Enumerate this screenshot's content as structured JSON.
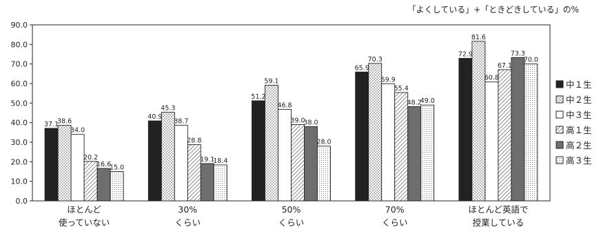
{
  "chart_data": {
    "type": "bar",
    "title": "「よくしている」+「ときどきしている」の%",
    "xlabel": "",
    "ylabel": "",
    "ylim": [
      0,
      90
    ],
    "yticks": [
      "0.0",
      "10.0",
      "20.0",
      "30.0",
      "40.0",
      "50.0",
      "60.0",
      "70.0",
      "80.0",
      "90.0"
    ],
    "grid": false,
    "legend_position": "right",
    "categories": [
      [
        "ほとんど",
        "使っていない"
      ],
      [
        "30%",
        "くらい"
      ],
      [
        "50%",
        "くらい"
      ],
      [
        "70%",
        "くらい"
      ],
      [
        "ほとんど英語で",
        "授業している"
      ]
    ],
    "series": [
      {
        "name": "中1生",
        "legend_label": "中１生",
        "fill": "solid-dark",
        "color": "#222222",
        "values": [
          37.1,
          40.9,
          51.2,
          65.9,
          72.9
        ],
        "labels": [
          "37.1",
          "40.9",
          "51.2",
          "65.9",
          "72.9"
        ]
      },
      {
        "name": "中2生",
        "legend_label": "中２生",
        "fill": "dots",
        "color": "#ffffff",
        "values": [
          38.6,
          45.3,
          59.1,
          70.3,
          81.6
        ],
        "labels": [
          "38.6",
          "45.3",
          "59.1",
          "70.3",
          "81.6"
        ]
      },
      {
        "name": "中3生",
        "legend_label": "中３生",
        "fill": "white",
        "color": "#ffffff",
        "values": [
          34.0,
          38.7,
          46.8,
          59.9,
          60.8
        ],
        "labels": [
          "34.0",
          "38.7",
          "46.8",
          "59.9",
          "60.8"
        ]
      },
      {
        "name": "高1生",
        "legend_label": "高１生",
        "fill": "diagonal",
        "color": "#ffffff",
        "values": [
          20.2,
          28.8,
          39.0,
          55.4,
          67.1
        ],
        "labels": [
          "20.2",
          "28.8",
          "39.0",
          "55.4",
          "67.1"
        ]
      },
      {
        "name": "高2生",
        "legend_label": "高２生",
        "fill": "solid-gray",
        "color": "#6e6e6e",
        "values": [
          16.6,
          19.1,
          38.0,
          48.2,
          73.3
        ],
        "labels": [
          "16.6",
          "19.1",
          "38.0",
          "48.2",
          "73.3"
        ]
      },
      {
        "name": "高3生",
        "legend_label": "高３生",
        "fill": "fine-dots",
        "color": "#ffffff",
        "values": [
          15.0,
          18.4,
          28.0,
          49.0,
          70.0
        ],
        "labels": [
          "15.0",
          "18.4",
          "28.0",
          "49.0",
          "70.0"
        ]
      }
    ]
  }
}
